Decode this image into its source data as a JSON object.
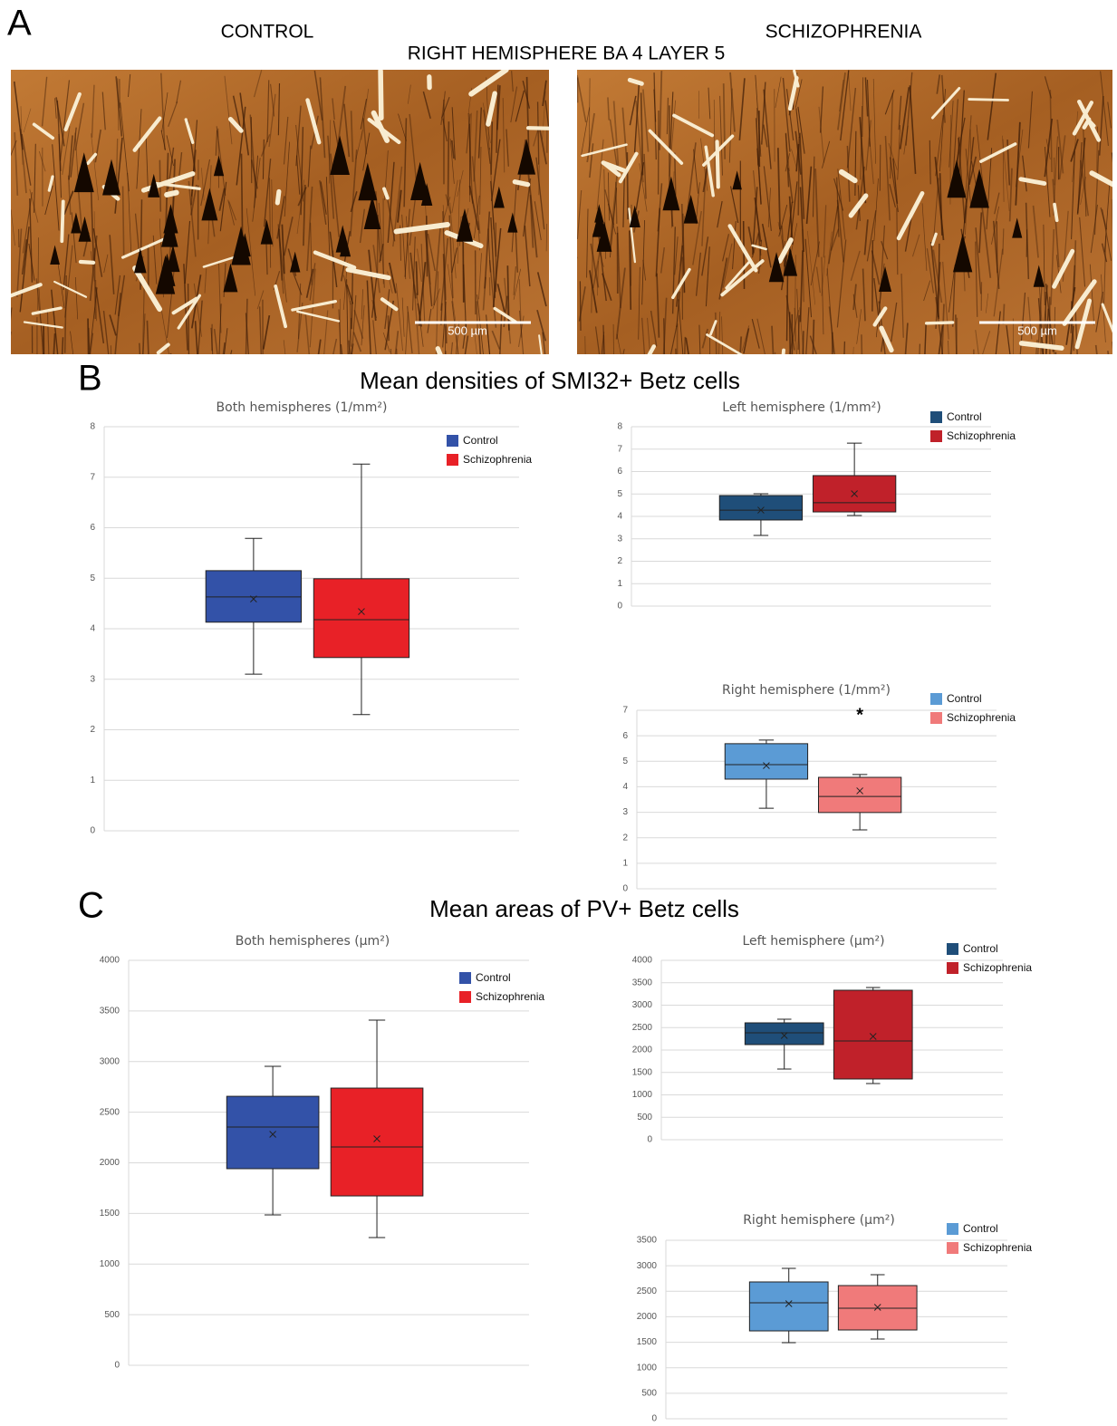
{
  "panel_a": {
    "label": "A",
    "left_title": "CONTROL",
    "right_title": "SCHIZOPHRENIA",
    "subtitle": "RIGHT HEMISPHERE BA 4 LAYER 5",
    "scale_bars": [
      "500 µm",
      "500 µm"
    ]
  },
  "panel_b": {
    "label": "B",
    "title": "Mean densities of SMI32+ Betz cells"
  },
  "panel_c": {
    "label": "C",
    "title": "Mean areas of PV+ Betz cells"
  },
  "chart_data": [
    {
      "type": "box",
      "title": "Both hemispheres (1/mm²)",
      "ylim": [
        0,
        8
      ],
      "yticks": [
        0,
        1,
        2,
        3,
        4,
        5,
        6,
        7,
        8
      ],
      "grid": true,
      "legend": "top-right",
      "series": [
        {
          "name": "Control",
          "color": "#3352a8",
          "min": 3.1,
          "q1": 4.13,
          "median": 4.63,
          "q3": 5.15,
          "max": 5.79,
          "mean": 4.59
        },
        {
          "name": "Schizophrenia",
          "color": "#e82127",
          "min": 2.3,
          "q1": 3.43,
          "median": 4.18,
          "q3": 4.99,
          "max": 7.26,
          "mean": 4.34
        }
      ]
    },
    {
      "type": "box",
      "title": "Left hemisphere (1/mm²)",
      "ylim": [
        0,
        8
      ],
      "yticks": [
        0,
        1,
        2,
        3,
        4,
        5,
        6,
        7,
        8
      ],
      "grid": true,
      "legend": "top-right",
      "series": [
        {
          "name": "Control",
          "color": "#1f4e79",
          "min": 3.15,
          "q1": 3.84,
          "median": 4.28,
          "q3": 4.93,
          "max": 5.01,
          "mean": 4.28
        },
        {
          "name": "Schizophrenia",
          "color": "#c0212a",
          "min": 4.04,
          "q1": 4.2,
          "median": 4.61,
          "q3": 5.82,
          "max": 7.27,
          "mean": 5.01
        }
      ]
    },
    {
      "type": "box",
      "title": "Right hemisphere (1/mm²)",
      "ylim": [
        0,
        7
      ],
      "yticks": [
        0,
        1,
        2,
        3,
        4,
        5,
        6,
        7
      ],
      "grid": true,
      "legend": "top-right",
      "annotation": "*",
      "series": [
        {
          "name": "Control",
          "color": "#5b9bd5",
          "min": 3.16,
          "q1": 4.3,
          "median": 4.87,
          "q3": 5.69,
          "max": 5.83,
          "mean": 4.83
        },
        {
          "name": "Schizophrenia",
          "color": "#f07a7a",
          "min": 2.31,
          "q1": 2.99,
          "median": 3.62,
          "q3": 4.37,
          "max": 4.48,
          "mean": 3.84
        }
      ]
    },
    {
      "type": "box",
      "title": "Both hemispheres (µm²)",
      "ylim": [
        0,
        4000
      ],
      "yticks": [
        0,
        500,
        1000,
        1500,
        2000,
        2500,
        3000,
        3500,
        4000
      ],
      "grid": true,
      "legend": "top-right",
      "series": [
        {
          "name": "Control",
          "color": "#3352a8",
          "min": 1485,
          "q1": 1942,
          "median": 2353,
          "q3": 2657,
          "max": 2953,
          "mean": 2282
        },
        {
          "name": "Schizophrenia",
          "color": "#e82127",
          "min": 1262,
          "q1": 1673,
          "median": 2157,
          "q3": 2738,
          "max": 3409,
          "mean": 2237
        }
      ]
    },
    {
      "type": "box",
      "title": "Left hemisphere (µm²)",
      "ylim": [
        0,
        4000
      ],
      "yticks": [
        0,
        500,
        1000,
        1500,
        2000,
        2500,
        3000,
        3500,
        4000
      ],
      "grid": true,
      "legend": "top-right",
      "series": [
        {
          "name": "Control",
          "color": "#1f4e79",
          "min": 1576,
          "q1": 2121,
          "median": 2384,
          "q3": 2606,
          "max": 2687,
          "mean": 2323
        },
        {
          "name": "Schizophrenia",
          "color": "#c0212a",
          "min": 1253,
          "q1": 1354,
          "median": 2202,
          "q3": 3333,
          "max": 3394,
          "mean": 2303
        }
      ]
    },
    {
      "type": "box",
      "title": "Right hemisphere (µm²)",
      "ylim": [
        0,
        3500
      ],
      "yticks": [
        0,
        500,
        1000,
        1500,
        2000,
        2500,
        3000,
        3500
      ],
      "grid": true,
      "legend": "top-right",
      "series": [
        {
          "name": "Control",
          "color": "#5b9bd5",
          "min": 1492,
          "q1": 1723,
          "median": 2274,
          "q3": 2683,
          "max": 2949,
          "mean": 2256
        },
        {
          "name": "Schizophrenia",
          "color": "#f07a7a",
          "min": 1563,
          "q1": 1741,
          "median": 2167,
          "q3": 2612,
          "max": 2825,
          "mean": 2185
        }
      ]
    }
  ]
}
